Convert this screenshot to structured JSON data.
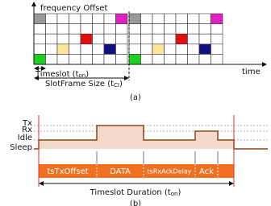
{
  "figure_a": {
    "y_axis_label": "frequency Offset",
    "x_axis_label": "time",
    "timeslot_label": {
      "text": "Timeslot (t",
      "sub": "on",
      "end": ")"
    },
    "slotframe_label": {
      "text": "SlotFrame Size (t",
      "sub": "CI",
      "end": ")"
    },
    "caption": "(a)"
  },
  "figure_b": {
    "levels": [
      "Tx",
      "Rx",
      "Idle",
      "Sleep"
    ],
    "phases": [
      "tsTxOffset",
      "DATA",
      "tsRxAckDelay",
      "Ack"
    ],
    "duration_label": {
      "text": "Timeslot Duration (t",
      "sub": "on",
      "end": ")"
    },
    "caption": "(b)"
  }
}
